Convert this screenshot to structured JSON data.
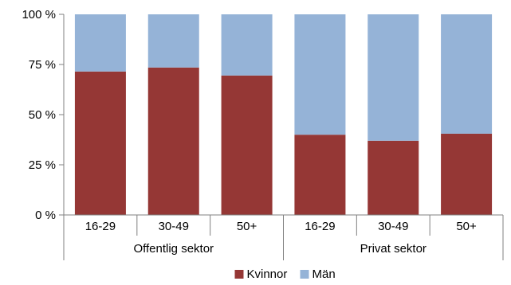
{
  "chart_data": {
    "type": "bar",
    "stacked": "percent",
    "groups": [
      {
        "label": "Offentlig sektor",
        "categories": [
          "16-29",
          "30-49",
          "50+"
        ]
      },
      {
        "label": "Privat sektor",
        "categories": [
          "16-29",
          "30-49",
          "50+"
        ]
      }
    ],
    "series": [
      {
        "name": "Kvinnor",
        "color": "#953735",
        "values": [
          71.5,
          73.5,
          69.5,
          40,
          37,
          40.5
        ]
      },
      {
        "name": "Män",
        "color": "#95B3D7",
        "values": [
          28.5,
          26.5,
          30.5,
          60,
          63,
          59.5
        ]
      }
    ],
    "ylim": [
      0,
      100
    ],
    "yticks": [
      0,
      25,
      50,
      75,
      100
    ],
    "ytick_labels": [
      "0 %",
      "25 %",
      "50 %",
      "75 %",
      "100 %"
    ],
    "legend": {
      "position": "bottom"
    },
    "grid": false
  }
}
